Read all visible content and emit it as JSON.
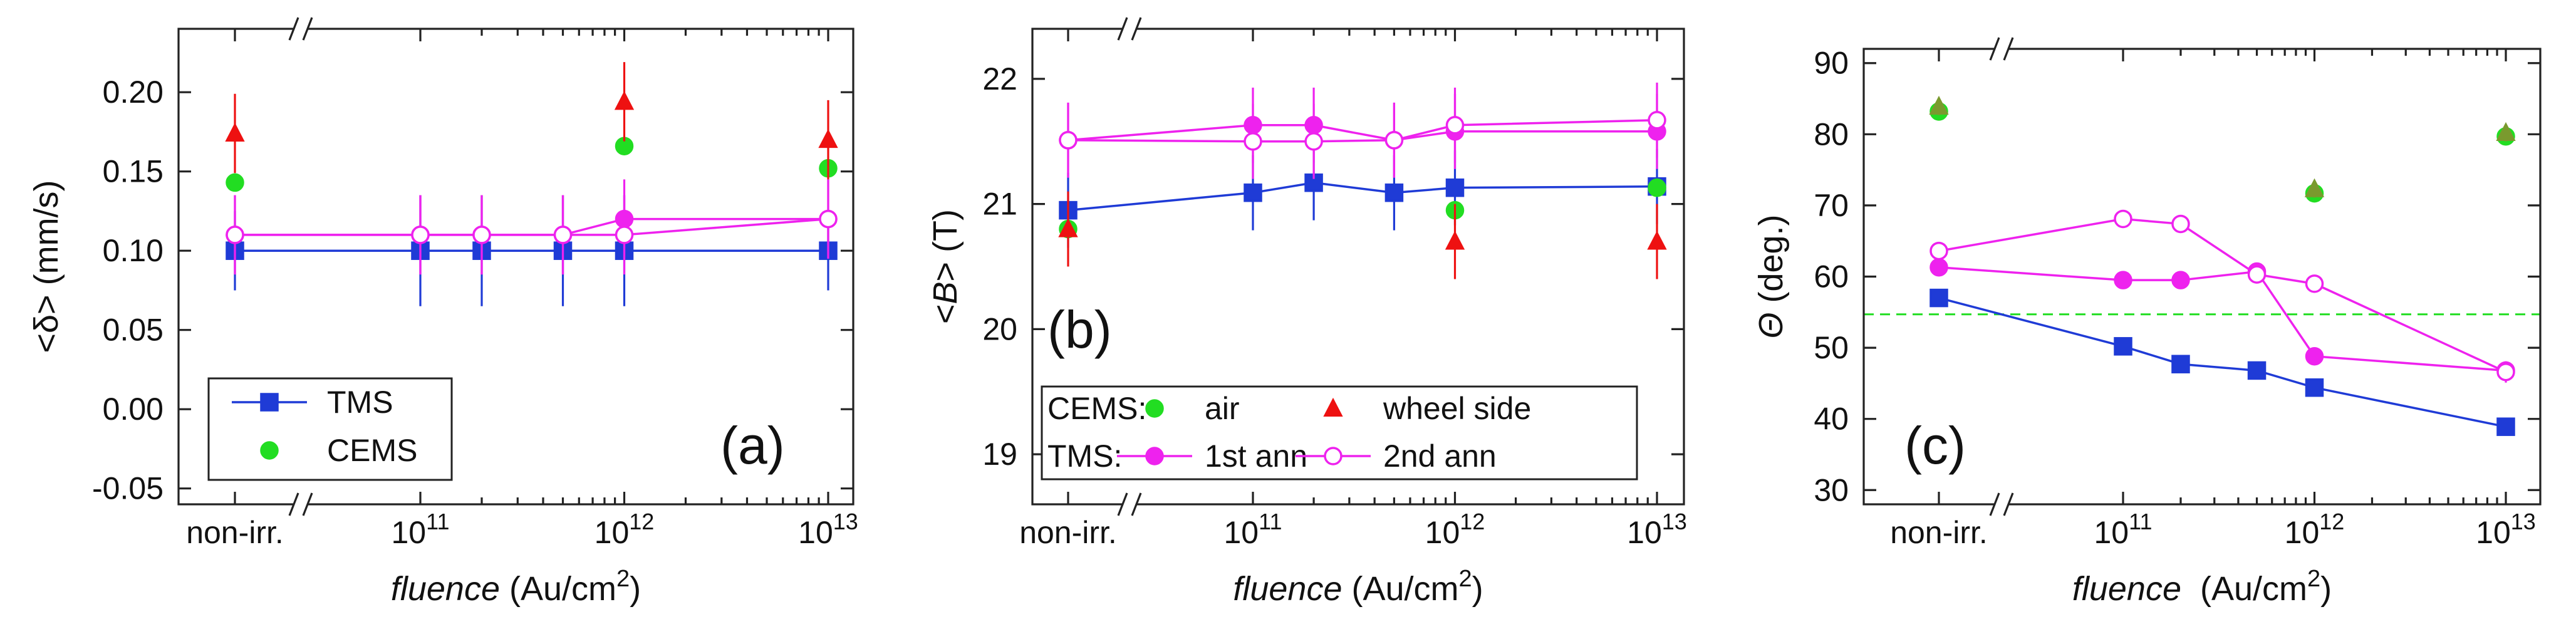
{
  "chart_data": [
    {
      "type": "scatter",
      "panel_label": "(a)",
      "ylabel": "<δ>  (mm/s)",
      "xlabel": {
        "italic": "fluence",
        "unit": "(Au/cm",
        "sup": "2",
        "close": ")"
      },
      "ylim": [
        -0.06,
        0.24
      ],
      "yticks": [
        -0.05,
        0.0,
        0.05,
        0.1,
        0.15,
        0.2
      ],
      "ytick_labels": [
        "-0.05",
        "0.00",
        "0.05",
        "0.10",
        "0.15",
        "0.20"
      ],
      "x_category_label": "non-irr.",
      "x_pow_ticks": [
        {
          "base": "10",
          "exp": "11",
          "pos": 11
        },
        {
          "base": "10",
          "exp": "12",
          "pos": 12
        },
        {
          "base": "10",
          "exp": "13",
          "pos": 13
        }
      ],
      "series": [
        {
          "name": "TMS",
          "color": "#1f3bd6",
          "marker": "square",
          "fill": true,
          "connect": true,
          "points": [
            {
              "x": "non-irr.",
              "y": 0.1,
              "err": 0.025
            },
            {
              "x": 100000000000.0,
              "y": 0.1,
              "err": 0.035
            },
            {
              "x": 200000000000.0,
              "y": 0.1,
              "err": 0.035
            },
            {
              "x": 500000000000.0,
              "y": 0.1,
              "err": 0.035
            },
            {
              "x": 1000000000000.0,
              "y": 0.1,
              "err": 0.035
            },
            {
              "x": 10000000000000.0,
              "y": 0.1,
              "err": 0.025
            }
          ]
        },
        {
          "name": "TMS 1st ann",
          "color": "#ee22ee",
          "marker": "circle",
          "fill": true,
          "connect": true,
          "points": [
            {
              "x": "non-irr.",
              "y": 0.11,
              "err": 0.025
            },
            {
              "x": 100000000000.0,
              "y": 0.11,
              "err": 0.025
            },
            {
              "x": 200000000000.0,
              "y": 0.11,
              "err": 0.025
            },
            {
              "x": 500000000000.0,
              "y": 0.11,
              "err": 0.025
            },
            {
              "x": 1000000000000.0,
              "y": 0.12,
              "err": 0.025
            },
            {
              "x": 10000000000000.0,
              "y": 0.12,
              "err": 0.025
            }
          ]
        },
        {
          "name": "TMS 2nd ann",
          "color": "#ee22ee",
          "marker": "circle",
          "fill": false,
          "connect": true,
          "points": [
            {
              "x": "non-irr.",
              "y": 0.11,
              "err": 0.025
            },
            {
              "x": 100000000000.0,
              "y": 0.11,
              "err": 0.025
            },
            {
              "x": 200000000000.0,
              "y": 0.11,
              "err": 0.025
            },
            {
              "x": 500000000000.0,
              "y": 0.11,
              "err": 0.025
            },
            {
              "x": 1000000000000.0,
              "y": 0.11,
              "err": 0.025
            },
            {
              "x": 10000000000000.0,
              "y": 0.12,
              "err": 0.025
            }
          ]
        },
        {
          "name": "CEMS",
          "color": "#22dd22",
          "marker": "circle",
          "fill": true,
          "connect": false,
          "points": [
            {
              "x": "non-irr.",
              "y": 0.143,
              "err": 0.0
            },
            {
              "x": 1000000000000.0,
              "y": 0.166,
              "err": 0.0
            },
            {
              "x": 10000000000000.0,
              "y": 0.152,
              "err": 0.0
            }
          ]
        },
        {
          "name": "CEMS wheel side",
          "color": "#ee1111",
          "marker": "triangle",
          "fill": true,
          "connect": false,
          "points": [
            {
              "x": "non-irr.",
              "y": 0.174,
              "err": 0.025
            },
            {
              "x": 1000000000000.0,
              "y": 0.194,
              "err": 0.025
            },
            {
              "x": 10000000000000.0,
              "y": 0.17,
              "err": 0.025
            }
          ]
        }
      ],
      "legend": {
        "placement": "bottom-left",
        "entries": [
          {
            "label": "TMS",
            "color": "#1f3bd6",
            "marker": "square",
            "fill": true,
            "line": true
          },
          {
            "label": "CEMS",
            "color": "#22dd22",
            "marker": "circle",
            "fill": true,
            "line": false
          }
        ]
      }
    },
    {
      "type": "scatter",
      "panel_label": "(b)",
      "ylabel": {
        "open": "<",
        "italic": "B",
        "close": ">  (T)"
      },
      "xlabel": {
        "italic": "fluence",
        "unit": "(Au/cm",
        "sup": "2",
        "close": ")"
      },
      "ylim": [
        18.6,
        22.4
      ],
      "yticks": [
        19,
        20,
        21,
        22
      ],
      "ytick_labels": [
        "19",
        "20",
        "21",
        "22"
      ],
      "x_category_label": "non-irr.",
      "x_pow_ticks": [
        {
          "base": "10",
          "exp": "11",
          "pos": 11
        },
        {
          "base": "10",
          "exp": "12",
          "pos": 12
        },
        {
          "base": "10",
          "exp": "13",
          "pos": 13
        }
      ],
      "series": [
        {
          "name": "TMS",
          "color": "#1f3bd6",
          "marker": "square",
          "fill": true,
          "connect": true,
          "points": [
            {
              "x": "non-irr.",
              "y": 20.95,
              "err": 0.3
            },
            {
              "x": 100000000000.0,
              "y": 21.09,
              "err": 0.3
            },
            {
              "x": 200000000000.0,
              "y": 21.17,
              "err": 0.3
            },
            {
              "x": 500000000000.0,
              "y": 21.09,
              "err": 0.3
            },
            {
              "x": 1000000000000.0,
              "y": 21.13,
              "err": 0.3
            },
            {
              "x": 10000000000000.0,
              "y": 21.14,
              "err": 0.3
            }
          ]
        },
        {
          "name": "1st ann",
          "color": "#ee22ee",
          "marker": "circle",
          "fill": true,
          "connect": true,
          "points": [
            {
              "x": "non-irr.",
              "y": 21.51,
              "err": 0.3
            },
            {
              "x": 100000000000.0,
              "y": 21.63,
              "err": 0.3
            },
            {
              "x": 200000000000.0,
              "y": 21.63,
              "err": 0.3
            },
            {
              "x": 500000000000.0,
              "y": 21.51,
              "err": 0.3
            },
            {
              "x": 1000000000000.0,
              "y": 21.58,
              "err": 0.3
            },
            {
              "x": 10000000000000.0,
              "y": 21.58,
              "err": 0.3
            }
          ]
        },
        {
          "name": "2nd ann",
          "color": "#ee22ee",
          "marker": "circle",
          "fill": false,
          "connect": true,
          "points": [
            {
              "x": "non-irr.",
              "y": 21.51,
              "err": 0.3
            },
            {
              "x": 100000000000.0,
              "y": 21.5,
              "err": 0.3
            },
            {
              "x": 200000000000.0,
              "y": 21.5,
              "err": 0.3
            },
            {
              "x": 500000000000.0,
              "y": 21.51,
              "err": 0.3
            },
            {
              "x": 1000000000000.0,
              "y": 21.63,
              "err": 0.3
            },
            {
              "x": 10000000000000.0,
              "y": 21.67,
              "err": 0.3
            }
          ]
        },
        {
          "name": "air",
          "color": "#22dd22",
          "marker": "circle",
          "fill": true,
          "connect": false,
          "points": [
            {
              "x": "non-irr.",
              "y": 20.8,
              "err": 0.0
            },
            {
              "x": 1000000000000.0,
              "y": 20.95,
              "err": 0.0
            },
            {
              "x": 10000000000000.0,
              "y": 21.13,
              "err": 0.0
            }
          ]
        },
        {
          "name": "wheel side",
          "color": "#ee1111",
          "marker": "triangle",
          "fill": true,
          "connect": false,
          "points": [
            {
              "x": "non-irr.",
              "y": 20.8,
              "err": 0.3
            },
            {
              "x": 1000000000000.0,
              "y": 20.7,
              "err": 0.3
            },
            {
              "x": 10000000000000.0,
              "y": 20.7,
              "err": 0.3
            }
          ]
        }
      ],
      "legend": {
        "placement": "bottom-left",
        "rows": [
          {
            "prefix": "CEMS:",
            "entries": [
              {
                "label": "air",
                "color": "#22dd22",
                "marker": "circle",
                "fill": true,
                "line": false
              },
              {
                "label": "wheel side",
                "color": "#ee1111",
                "marker": "triangle",
                "fill": true,
                "line": false
              }
            ]
          },
          {
            "prefix": "TMS:",
            "entries": [
              {
                "label": "1st ann",
                "color": "#ee22ee",
                "marker": "circle",
                "fill": true,
                "line": true
              },
              {
                "label": "2nd ann",
                "color": "#ee22ee",
                "marker": "circle",
                "fill": false,
                "line": true
              }
            ]
          }
        ]
      }
    },
    {
      "type": "scatter",
      "panel_label": "(c)",
      "ylabel": {
        "italic": "Θ",
        "close": "  (deg.)"
      },
      "xlabel": {
        "italic": "fluence",
        "unit": " (Au/cm",
        "sup": "2",
        "close": ")"
      },
      "ylim": [
        28,
        92
      ],
      "yticks": [
        30,
        40,
        50,
        60,
        70,
        80,
        90
      ],
      "ytick_labels": [
        "30",
        "40",
        "50",
        "60",
        "70",
        "80",
        "90"
      ],
      "x_category_label": "non-irr.",
      "x_pow_ticks": [
        {
          "base": "10",
          "exp": "11",
          "pos": 11
        },
        {
          "base": "10",
          "exp": "12",
          "pos": 12
        },
        {
          "base": "10",
          "exp": "13",
          "pos": 13
        }
      ],
      "reference_line": {
        "y": 54.7,
        "color": "#22dd22",
        "style": "dashed"
      },
      "series": [
        {
          "name": "TMS",
          "color": "#1f3bd6",
          "marker": "square",
          "fill": true,
          "connect": true,
          "points": [
            {
              "x": "non-irr.",
              "y": 57.0,
              "err": 1.0
            },
            {
              "x": 100000000000.0,
              "y": 50.2,
              "err": 1.2
            },
            {
              "x": 200000000000.0,
              "y": 47.7,
              "err": 1.2
            },
            {
              "x": 500000000000.0,
              "y": 46.8,
              "err": 1.2
            },
            {
              "x": 1000000000000.0,
              "y": 44.4,
              "err": 1.2
            },
            {
              "x": 10000000000000.0,
              "y": 38.9,
              "err": 1.0
            }
          ]
        },
        {
          "name": "1st ann",
          "color": "#ee22ee",
          "marker": "circle",
          "fill": true,
          "connect": true,
          "points": [
            {
              "x": "non-irr.",
              "y": 61.3,
              "err": 1.0
            },
            {
              "x": 100000000000.0,
              "y": 59.5,
              "err": 1.0
            },
            {
              "x": 200000000000.0,
              "y": 59.5,
              "err": 1.0
            },
            {
              "x": 500000000000.0,
              "y": 60.7,
              "err": 1.0
            },
            {
              "x": 1000000000000.0,
              "y": 48.8,
              "err": 1.0
            },
            {
              "x": 10000000000000.0,
              "y": 46.8,
              "err": 1.0
            }
          ]
        },
        {
          "name": "2nd ann",
          "color": "#ee22ee",
          "marker": "circle",
          "fill": false,
          "connect": true,
          "points": [
            {
              "x": "non-irr.",
              "y": 63.6,
              "err": 1.0
            },
            {
              "x": 100000000000.0,
              "y": 68.1,
              "err": 1.2
            },
            {
              "x": 200000000000.0,
              "y": 67.4,
              "err": 1.2
            },
            {
              "x": 500000000000.0,
              "y": 60.3,
              "err": 1.2
            },
            {
              "x": 1000000000000.0,
              "y": 59.0,
              "err": 1.2
            },
            {
              "x": 10000000000000.0,
              "y": 46.6,
              "err": 1.5
            }
          ]
        },
        {
          "name": "CEMS air",
          "color": "#22dd22",
          "marker": "circle",
          "fill": true,
          "connect": false,
          "points": [
            {
              "x": "non-irr.",
              "y": 83.2,
              "err": 0.0
            },
            {
              "x": 1000000000000.0,
              "y": 71.7,
              "err": 0.0
            },
            {
              "x": 10000000000000.0,
              "y": 79.7,
              "err": 0.0
            }
          ]
        },
        {
          "name": "CEMS wheel side",
          "color": "#7a9a2e",
          "marker": "triangle",
          "fill": true,
          "connect": false,
          "points": [
            {
              "x": "non-irr.",
              "y": 83.9,
              "err": 1.2
            },
            {
              "x": 1000000000000.0,
              "y": 72.3,
              "err": 1.2
            },
            {
              "x": 10000000000000.0,
              "y": 80.2,
              "err": 1.2
            }
          ]
        }
      ]
    }
  ]
}
